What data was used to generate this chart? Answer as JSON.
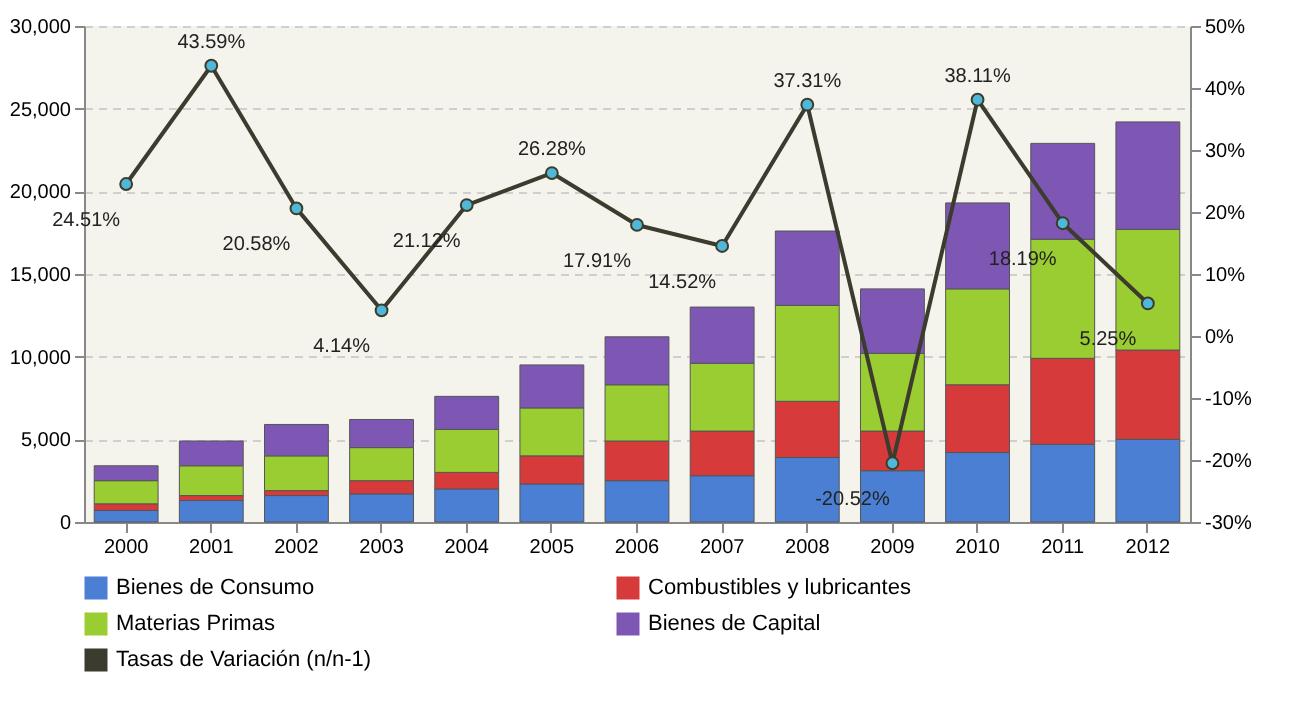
{
  "chart_data": {
    "type": "bar",
    "stacked": true,
    "categories": [
      "2000",
      "2001",
      "2002",
      "2003",
      "2004",
      "2005",
      "2006",
      "2007",
      "2008",
      "2009",
      "2010",
      "2011",
      "2012"
    ],
    "series": [
      {
        "name": "Bienes de Consumo",
        "color": "#4a7fd4",
        "values": [
          700,
          1300,
          1600,
          1700,
          2000,
          2300,
          2500,
          2800,
          3900,
          3100,
          4200,
          4700,
          5000
        ]
      },
      {
        "name": "Combustibles y lubricantes",
        "color": "#d63a3a",
        "values": [
          400,
          300,
          300,
          800,
          1000,
          1700,
          2400,
          2700,
          3400,
          2400,
          4100,
          5200,
          5400
        ]
      },
      {
        "name": "Materias Primas",
        "color": "#9acd32",
        "values": [
          1400,
          1800,
          2100,
          2000,
          2600,
          2900,
          3400,
          4100,
          5800,
          4700,
          5800,
          7200,
          7300
        ]
      },
      {
        "name": "Bienes de Capital",
        "color": "#7e57b5",
        "values": [
          900,
          1500,
          1900,
          1700,
          2000,
          2600,
          2900,
          3400,
          4500,
          3900,
          5200,
          5800,
          6500
        ]
      },
      {
        "name": "Tasas de Variación (n/n-1)",
        "type": "line",
        "axis": "y2",
        "color": "#3b3b2e",
        "values": [
          24.51,
          43.59,
          20.58,
          4.14,
          21.12,
          26.28,
          17.91,
          14.52,
          37.31,
          -20.52,
          38.11,
          18.19,
          5.25
        ],
        "value_labels": [
          "24.51%",
          "43.59%",
          "20.58%",
          "4.14%",
          "21.12%",
          "26.28%",
          "17.91%",
          "14.52%",
          "37.31%",
          "-20.52%",
          "38.11%",
          "18.19%",
          "5.25%"
        ]
      }
    ],
    "ylim": [
      0,
      30000
    ],
    "yticks": [
      {
        "value": 0,
        "label": "0"
      },
      {
        "value": 5000,
        "label": "5,000"
      },
      {
        "value": 10000,
        "label": "10,000"
      },
      {
        "value": 15000,
        "label": "15,000"
      },
      {
        "value": 20000,
        "label": "20,000"
      },
      {
        "value": 25000,
        "label": "25,000"
      },
      {
        "value": 30000,
        "label": "30,000"
      }
    ],
    "y2lim": [
      -30,
      50
    ],
    "y2ticks": [
      {
        "value": -30,
        "label": "-30%"
      },
      {
        "value": -20,
        "label": "-20%"
      },
      {
        "value": -10,
        "label": "-10%"
      },
      {
        "value": 0,
        "label": "0%"
      },
      {
        "value": 10,
        "label": "10%"
      },
      {
        "value": 20,
        "label": "20%"
      },
      {
        "value": 30,
        "label": "30%"
      },
      {
        "value": 40,
        "label": "40%"
      },
      {
        "value": 50,
        "label": "50%"
      }
    ],
    "grid": "y",
    "legend": "bottom",
    "marker": "circle"
  }
}
